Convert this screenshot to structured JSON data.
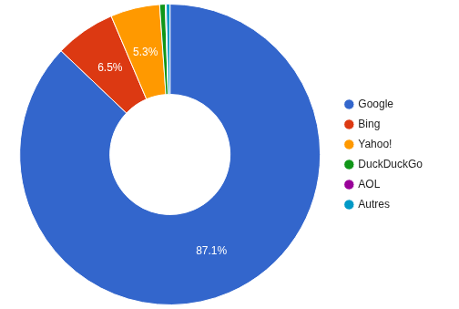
{
  "chart_data": {
    "type": "doughnut",
    "categories": [
      "Google",
      "Bing",
      "Yahoo!",
      "DuckDuckGo",
      "AOL",
      "Autres"
    ],
    "values": [
      87.1,
      6.5,
      5.3,
      0.6,
      0.1,
      0.4
    ],
    "value_labels": [
      "87.1%",
      "6.5%",
      "5.3%",
      null,
      null,
      null
    ],
    "colors": [
      "#3366cc",
      "#dc3912",
      "#ff9900",
      "#109618",
      "#990099",
      "#0099c6"
    ],
    "data_labels": true,
    "legend": "right"
  }
}
